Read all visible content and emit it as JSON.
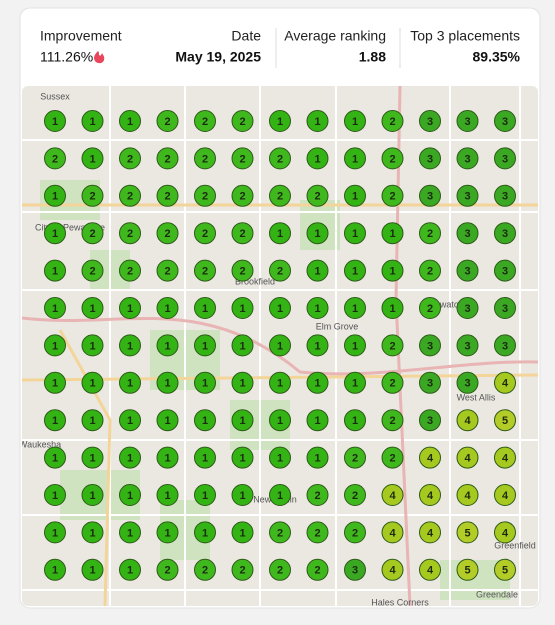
{
  "header": {
    "items": [
      {
        "label": "Improvement",
        "value": "111.26%"
      },
      {
        "label": "Date",
        "value": "May 19, 2025"
      },
      {
        "label": "Average ranking",
        "value": "1.88"
      },
      {
        "label": "Top 3 placements",
        "value": "89.35%"
      }
    ]
  },
  "map": {
    "labels": [
      "Sussex",
      "City of Pewaukee",
      "Brookfield",
      "Elm Grove",
      "Waukesha",
      "Wauwatosa",
      "West Allis",
      "New Berlin",
      "Greenfield",
      "Hales Corners",
      "Greendale"
    ]
  },
  "grid": {
    "rank_colors": {
      "1": "#33b314",
      "2": "#3fb81e",
      "3": "#3aa823",
      "4": "#a6c920",
      "5": "#b3cc27"
    },
    "rows": [
      [
        1,
        1,
        1,
        2,
        2,
        2,
        1,
        1,
        1,
        2,
        3,
        3,
        3
      ],
      [
        2,
        1,
        2,
        2,
        2,
        2,
        2,
        1,
        1,
        2,
        3,
        3,
        3
      ],
      [
        1,
        2,
        2,
        2,
        2,
        2,
        2,
        2,
        1,
        2,
        3,
        3,
        3
      ],
      [
        1,
        2,
        2,
        2,
        2,
        2,
        1,
        1,
        1,
        1,
        2,
        3,
        3
      ],
      [
        1,
        2,
        2,
        2,
        2,
        2,
        2,
        1,
        1,
        1,
        2,
        3,
        3
      ],
      [
        1,
        1,
        1,
        1,
        1,
        1,
        1,
        1,
        1,
        1,
        2,
        3,
        3
      ],
      [
        1,
        1,
        1,
        1,
        1,
        1,
        1,
        1,
        1,
        2,
        3,
        3,
        3
      ],
      [
        1,
        1,
        1,
        1,
        1,
        1,
        1,
        1,
        1,
        2,
        3,
        3,
        4
      ],
      [
        1,
        1,
        1,
        1,
        1,
        1,
        1,
        1,
        1,
        2,
        3,
        4,
        5
      ],
      [
        1,
        1,
        1,
        1,
        1,
        1,
        1,
        1,
        2,
        2,
        4,
        4,
        4
      ],
      [
        1,
        1,
        1,
        1,
        1,
        1,
        1,
        2,
        2,
        4,
        4,
        4,
        4
      ],
      [
        1,
        1,
        1,
        1,
        1,
        1,
        2,
        2,
        2,
        4,
        4,
        5,
        4
      ],
      [
        1,
        1,
        1,
        2,
        2,
        2,
        2,
        2,
        3,
        4,
        4,
        5,
        5
      ]
    ]
  }
}
